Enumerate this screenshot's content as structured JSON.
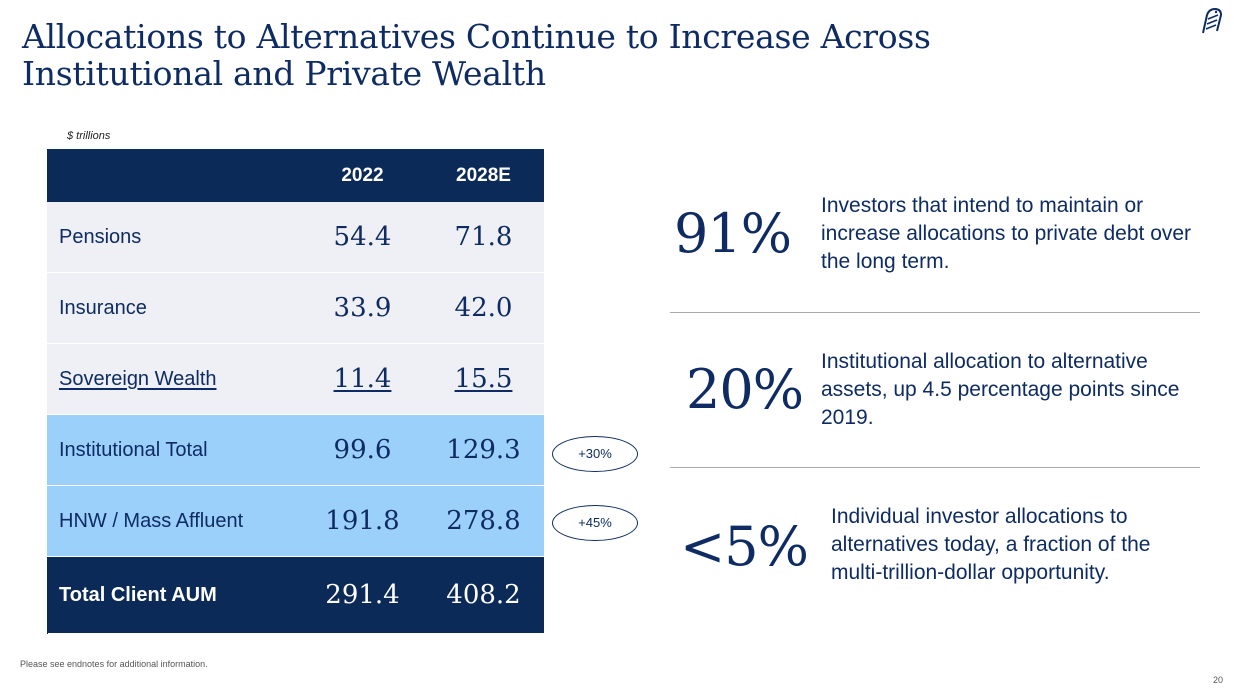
{
  "title": "Allocations to Alternatives Continue to Increase Across Institutional and Private Wealth",
  "table": {
    "units": "$ trillions",
    "columns": [
      "2022",
      "2028E"
    ],
    "rows": [
      {
        "label": "Pensions",
        "v2022": "54.4",
        "v2028": "71.8"
      },
      {
        "label": "Insurance",
        "v2022": "33.9",
        "v2028": "42.0"
      },
      {
        "label": "Sovereign Wealth",
        "v2022": "11.4",
        "v2028": "15.5"
      },
      {
        "label": "Institutional Total",
        "v2022": "99.6",
        "v2028": "129.3"
      },
      {
        "label": "HNW / Mass Affluent",
        "v2022": "191.8",
        "v2028": "278.8"
      },
      {
        "label": "Total Client AUM",
        "v2022": "291.4",
        "v2028": "408.2"
      }
    ]
  },
  "badges": {
    "institutional": "+30%",
    "hnw": "+45%"
  },
  "stats": [
    {
      "value": "91%",
      "text": "Investors that intend to maintain or increase allocations to private debt over the long term."
    },
    {
      "value": "20%",
      "text": "Institutional allocation to alternative assets, up 4.5 percentage points since 2019."
    },
    {
      "value": "<5%",
      "text": "Individual investor allocations to alternatives today, a fraction of the multi-trillion-dollar opportunity."
    }
  ],
  "footnote": "Please see endnotes for additional information.",
  "page_number": "20",
  "colors": {
    "navy": "#0c2a58",
    "light_blue": "#9bd0fb",
    "light_gray": "#eff0f5"
  }
}
